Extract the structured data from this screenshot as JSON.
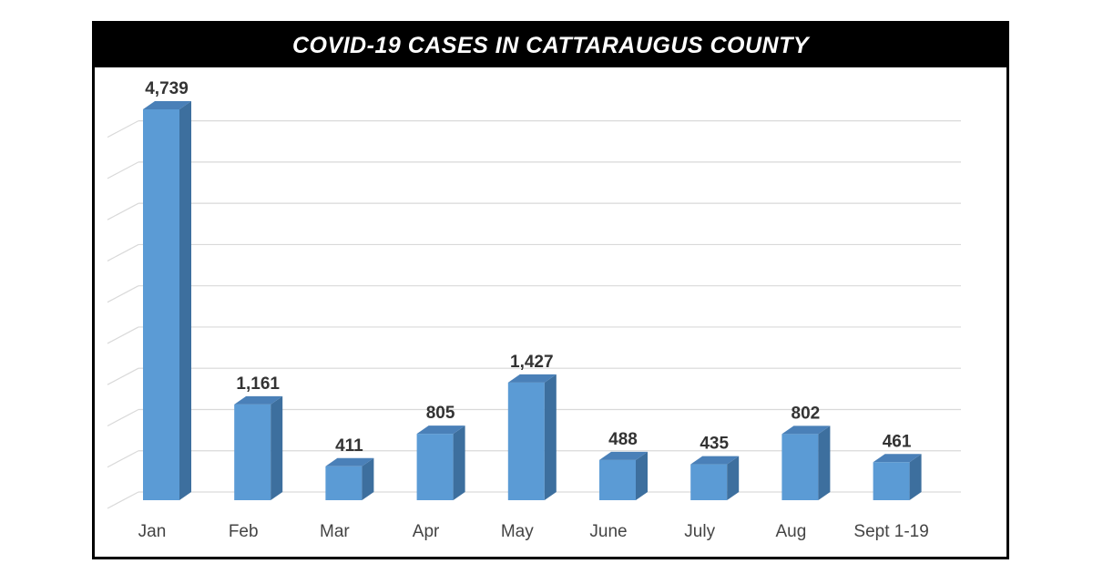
{
  "chart_data": {
    "type": "bar",
    "title": "COVID-19 CASES IN CATTARAUGUS COUNTY",
    "categories": [
      "Jan",
      "Feb",
      "Mar",
      "Apr",
      "May",
      "June",
      "July",
      "Aug",
      "Sept 1-19"
    ],
    "values": [
      4739,
      1161,
      411,
      805,
      1427,
      488,
      435,
      802,
      461
    ],
    "data_labels": [
      "4,739",
      "1,161",
      "411",
      "805",
      "1,427",
      "488",
      "435",
      "802",
      "461"
    ],
    "xlabel": "",
    "ylabel": "",
    "ylim": [
      0,
      5000
    ],
    "grid": true,
    "style": "3d-column",
    "colors": {
      "bar_front": "#5b9bd5",
      "bar_side": "#3d6f9e",
      "bar_top": "#4a80b8",
      "title_band": "#000000",
      "grid": "#d9d9d9"
    }
  }
}
